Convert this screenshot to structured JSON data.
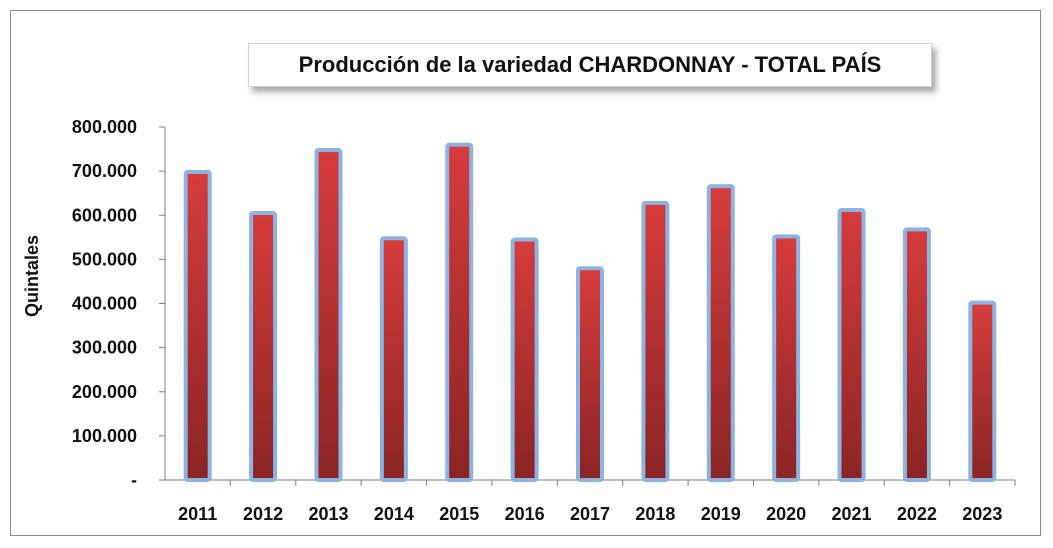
{
  "chart_data": {
    "type": "bar",
    "title": "Producción  de la variedad CHARDONNAY - TOTAL PAÍS",
    "xlabel": "",
    "ylabel": "Quintales",
    "categories": [
      "2011",
      "2012",
      "2013",
      "2014",
      "2015",
      "2016",
      "2017",
      "2018",
      "2019",
      "2020",
      "2021",
      "2022",
      "2023"
    ],
    "values": [
      698000,
      605000,
      748000,
      548000,
      760000,
      545000,
      480000,
      628000,
      666000,
      552000,
      612000,
      568000,
      402000
    ],
    "ylim": [
      0,
      800000
    ],
    "yticks": [
      0,
      100000,
      200000,
      300000,
      400000,
      500000,
      600000,
      700000,
      800000
    ],
    "ytick_labels": [
      "-",
      "100.000",
      "200.000",
      "300.000",
      "400.000",
      "500.000",
      "600.000",
      "700.000",
      "800.000"
    ],
    "grid": false,
    "legend": "none",
    "colors": {
      "bar_top": "#d63c3c",
      "bar_bottom": "#8a2424",
      "bar_outline": "#8db3e2",
      "axis": "#7f7f7f"
    }
  }
}
